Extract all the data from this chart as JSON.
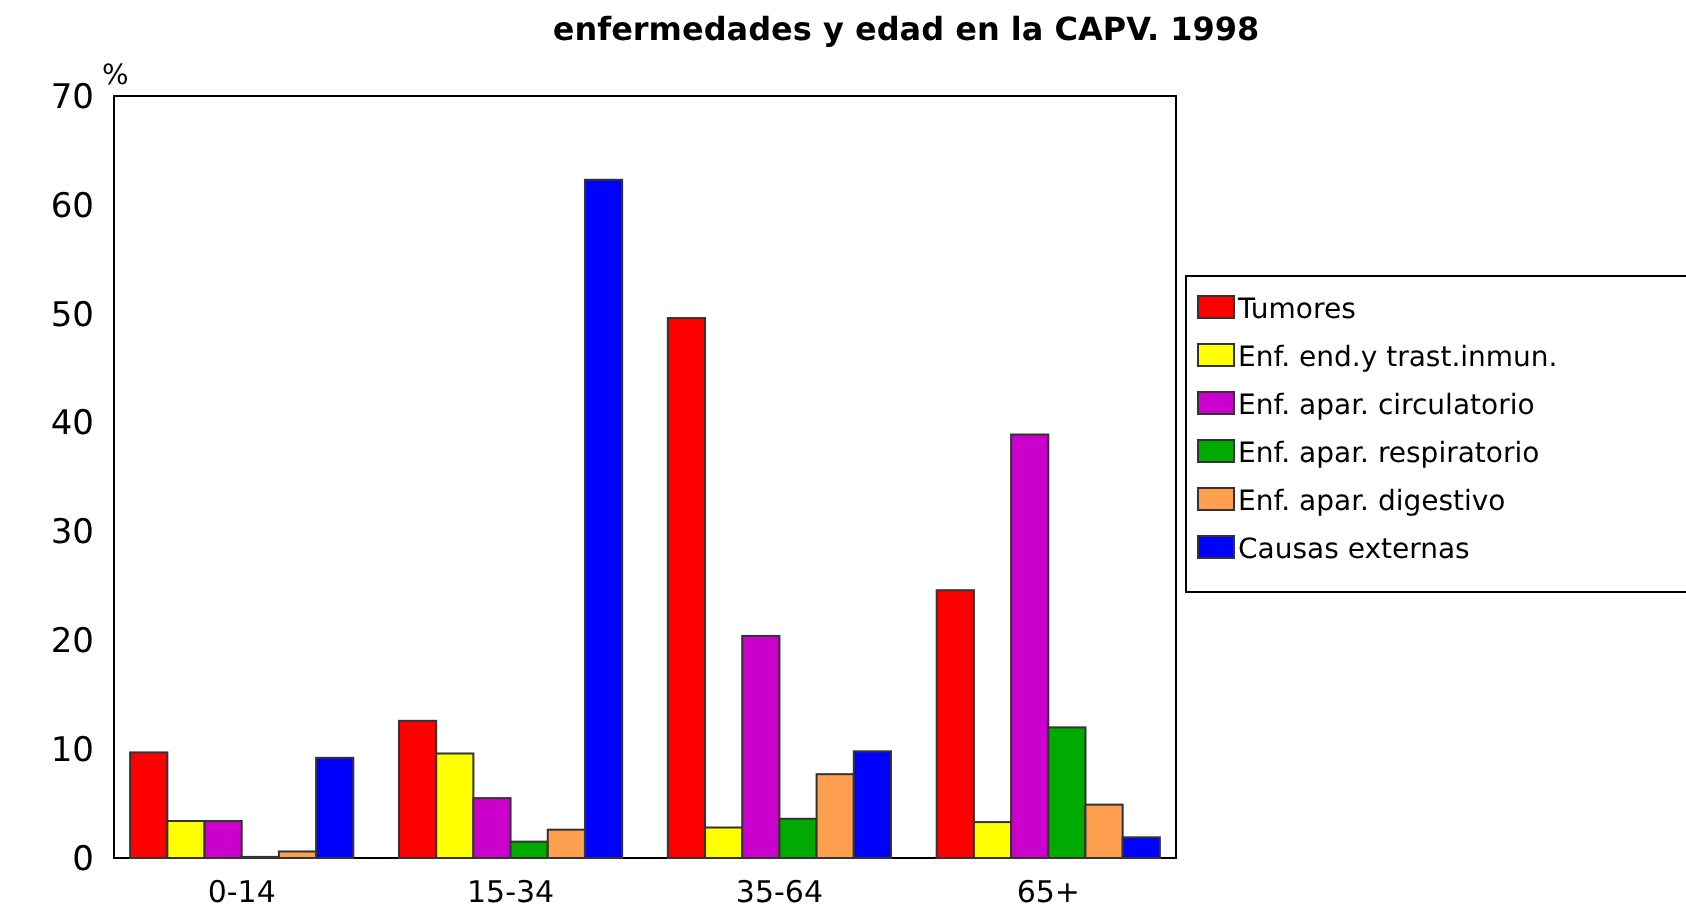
{
  "chart_data": {
    "type": "bar",
    "title": "enfermedades y edad en la CAPV. 1998",
    "ylabel": "%",
    "categories": [
      "0-14",
      "15-34",
      "35-64",
      "65+"
    ],
    "series": [
      {
        "name": "Tumores",
        "color": "#ff0000",
        "values": [
          9.7,
          12.6,
          49.6,
          24.6
        ]
      },
      {
        "name": "Enf. end.y trast.inmun.",
        "color": "#ffff00",
        "values": [
          3.4,
          9.6,
          2.8,
          3.3
        ]
      },
      {
        "name": "Enf. apar. circulatorio",
        "color": "#cc00cc",
        "values": [
          3.4,
          5.5,
          20.4,
          38.9
        ]
      },
      {
        "name": "Enf. apar. respiratorio",
        "color": "#00aa00",
        "values": [
          0.1,
          1.5,
          3.6,
          12.0
        ]
      },
      {
        "name": "Enf. apar. digestivo",
        "color": "#ffa050",
        "values": [
          0.6,
          2.6,
          7.7,
          4.9
        ]
      },
      {
        "name": "Causas externas",
        "color": "#0000ff",
        "values": [
          9.2,
          62.3,
          9.8,
          1.9
        ]
      }
    ],
    "ylim": [
      0,
      70
    ],
    "yticks": [
      0,
      10,
      20,
      30,
      40,
      50,
      60,
      70
    ],
    "grid": false,
    "legend": "right"
  }
}
